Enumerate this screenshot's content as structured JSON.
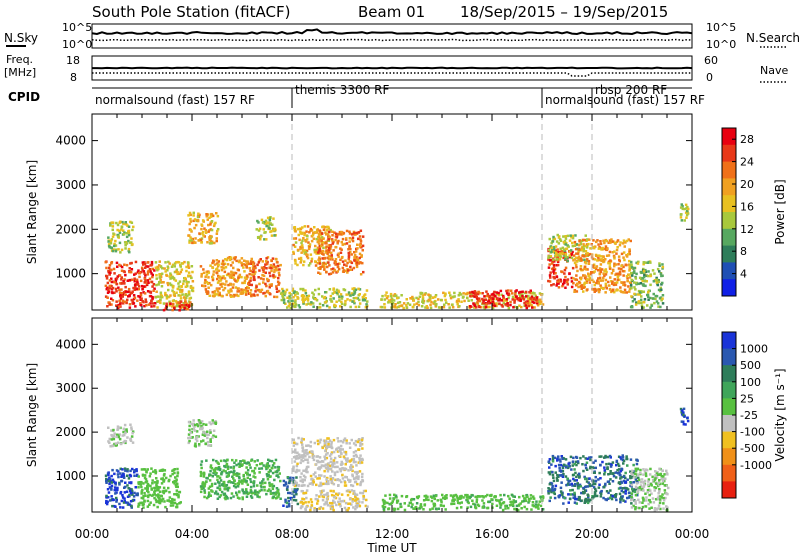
{
  "header": {
    "station": "South Pole Station (fitACF)",
    "beam": "Beam 01",
    "date_range": "18/Sep/2015 – 19/Sep/2015"
  },
  "strip_labels": {
    "nsky": "N.Sky",
    "nsearch": "N.Search",
    "freq_line1": "Freq.",
    "freq_line2": "[MHz]",
    "nave": "Nave",
    "cpid": "CPID",
    "noise_left_top": "10^5",
    "noise_left_bottom": "10^0",
    "noise_right_top": "10^5",
    "noise_right_bottom": "10^0",
    "freq_left_top": "18",
    "freq_left_bottom": "8",
    "nave_right_top": "60",
    "nave_right_bottom": "0"
  },
  "cpid_segments": [
    {
      "label": "normalsound (fast) 157 RF",
      "start_hour": 0
    },
    {
      "label": "themis 3300 RF",
      "start_hour": 8.0
    },
    {
      "label": "normalsound (fast) 157 RF",
      "start_hour": 18.0
    },
    {
      "label": "rbsp 200 RF",
      "start_hour": 20.0
    }
  ],
  "axes": {
    "y_label": "Slant Range [km]",
    "x_label": "Time UT",
    "y_ticks": [
      "1000",
      "2000",
      "3000",
      "4000"
    ],
    "x_ticks": [
      "00:00",
      "04:00",
      "08:00",
      "12:00",
      "16:00",
      "20:00",
      "00:00"
    ]
  },
  "colorbars": {
    "power": {
      "label": "Power [dB]",
      "ticks": [
        "4",
        "8",
        "12",
        "16",
        "20",
        "24",
        "28"
      ],
      "colors": [
        "#1020e6",
        "#1f4fb4",
        "#2e7d5a",
        "#57a860",
        "#a8c83c",
        "#e8c020",
        "#f0a020",
        "#f07018",
        "#e83818",
        "#e80010"
      ]
    },
    "velocity": {
      "label": "Velocity [m s⁻¹]",
      "ticks": [
        "1000",
        "500",
        "100",
        "25",
        "-25",
        "-100",
        "-500",
        "-1000"
      ],
      "colors": [
        "#1a34d8",
        "#2a58b0",
        "#2e7d5a",
        "#3fa55a",
        "#58c040",
        "#c0c0c0",
        "#f0c020",
        "#f09018",
        "#f06018",
        "#e82010"
      ]
    }
  },
  "chart_data": [
    {
      "type": "heatmap",
      "title": "Power",
      "xlabel": "Time UT",
      "ylabel": "Slant Range [km]",
      "xlim": [
        0,
        24
      ],
      "ylim": [
        180,
        4600
      ],
      "colorbar_range": [
        0,
        30
      ],
      "regions": [
        {
          "t0": 0.5,
          "t1": 2.5,
          "r0": 250,
          "r1": 1300,
          "level": 26
        },
        {
          "t0": 0.6,
          "t1": 1.6,
          "r0": 1500,
          "r1": 2200,
          "level": 14
        },
        {
          "t0": 2.5,
          "t1": 4.0,
          "r0": 250,
          "r1": 1300,
          "level": 16
        },
        {
          "t0": 2.8,
          "t1": 4.0,
          "r0": 200,
          "r1": 400,
          "level": 26
        },
        {
          "t0": 3.8,
          "t1": 5.0,
          "r0": 1700,
          "r1": 2400,
          "level": 18
        },
        {
          "t0": 4.3,
          "t1": 6.2,
          "r0": 500,
          "r1": 1400,
          "level": 20
        },
        {
          "t0": 6.2,
          "t1": 7.5,
          "r0": 500,
          "r1": 1400,
          "level": 22
        },
        {
          "t0": 6.5,
          "t1": 7.3,
          "r0": 1800,
          "r1": 2300,
          "level": 14
        },
        {
          "t0": 8.0,
          "t1": 9.5,
          "r0": 1200,
          "r1": 2100,
          "level": 18
        },
        {
          "t0": 9.0,
          "t1": 10.8,
          "r0": 1000,
          "r1": 2000,
          "level": 22
        },
        {
          "t0": 7.5,
          "t1": 11.0,
          "r0": 250,
          "r1": 700,
          "level": 14
        },
        {
          "t0": 11.5,
          "t1": 18.0,
          "r0": 250,
          "r1": 600,
          "level": 16
        },
        {
          "t0": 15.0,
          "t1": 17.8,
          "r0": 250,
          "r1": 650,
          "level": 27
        },
        {
          "t0": 18.2,
          "t1": 19.2,
          "r0": 700,
          "r1": 1600,
          "level": 26
        },
        {
          "t0": 18.2,
          "t1": 19.8,
          "r0": 1300,
          "r1": 1900,
          "level": 14
        },
        {
          "t0": 19.2,
          "t1": 21.5,
          "r0": 600,
          "r1": 1800,
          "level": 20
        },
        {
          "t0": 21.5,
          "t1": 22.8,
          "r0": 250,
          "r1": 1300,
          "level": 12
        },
        {
          "t0": 23.5,
          "t1": 23.8,
          "r0": 2200,
          "r1": 2600,
          "level": 14
        }
      ]
    },
    {
      "type": "heatmap",
      "title": "Velocity",
      "xlabel": "Time UT",
      "ylabel": "Slant Range [km]",
      "xlim": [
        0,
        24
      ],
      "ylim": [
        180,
        4600
      ],
      "colorbar_range": [
        -1000,
        1000
      ],
      "regions": [
        {
          "t0": 0.5,
          "t1": 1.8,
          "r0": 300,
          "r1": 1200,
          "level": 800
        },
        {
          "t0": 1.8,
          "t1": 3.5,
          "r0": 300,
          "r1": 1200,
          "level": 120
        },
        {
          "t0": 0.6,
          "t1": 1.6,
          "r0": 1700,
          "r1": 2200,
          "level": 0
        },
        {
          "t0": 3.8,
          "t1": 5.0,
          "r0": 1700,
          "r1": 2300,
          "level": 0
        },
        {
          "t0": 4.3,
          "t1": 7.5,
          "r0": 500,
          "r1": 1400,
          "level": 200
        },
        {
          "t0": 7.6,
          "t1": 8.2,
          "r0": 300,
          "r1": 1000,
          "level": 600
        },
        {
          "t0": 8.0,
          "t1": 10.8,
          "r0": 800,
          "r1": 1900,
          "level": -150
        },
        {
          "t0": 8.3,
          "t1": 11.0,
          "r0": 250,
          "r1": 700,
          "level": -200
        },
        {
          "t0": 11.5,
          "t1": 18.0,
          "r0": 250,
          "r1": 600,
          "level": 150
        },
        {
          "t0": 18.2,
          "t1": 21.8,
          "r0": 400,
          "r1": 1500,
          "level": 600
        },
        {
          "t0": 21.5,
          "t1": 23.0,
          "r0": 250,
          "r1": 1200,
          "level": 0
        },
        {
          "t0": 23.5,
          "t1": 23.8,
          "r0": 2200,
          "r1": 2600,
          "level": 900
        }
      ]
    }
  ]
}
